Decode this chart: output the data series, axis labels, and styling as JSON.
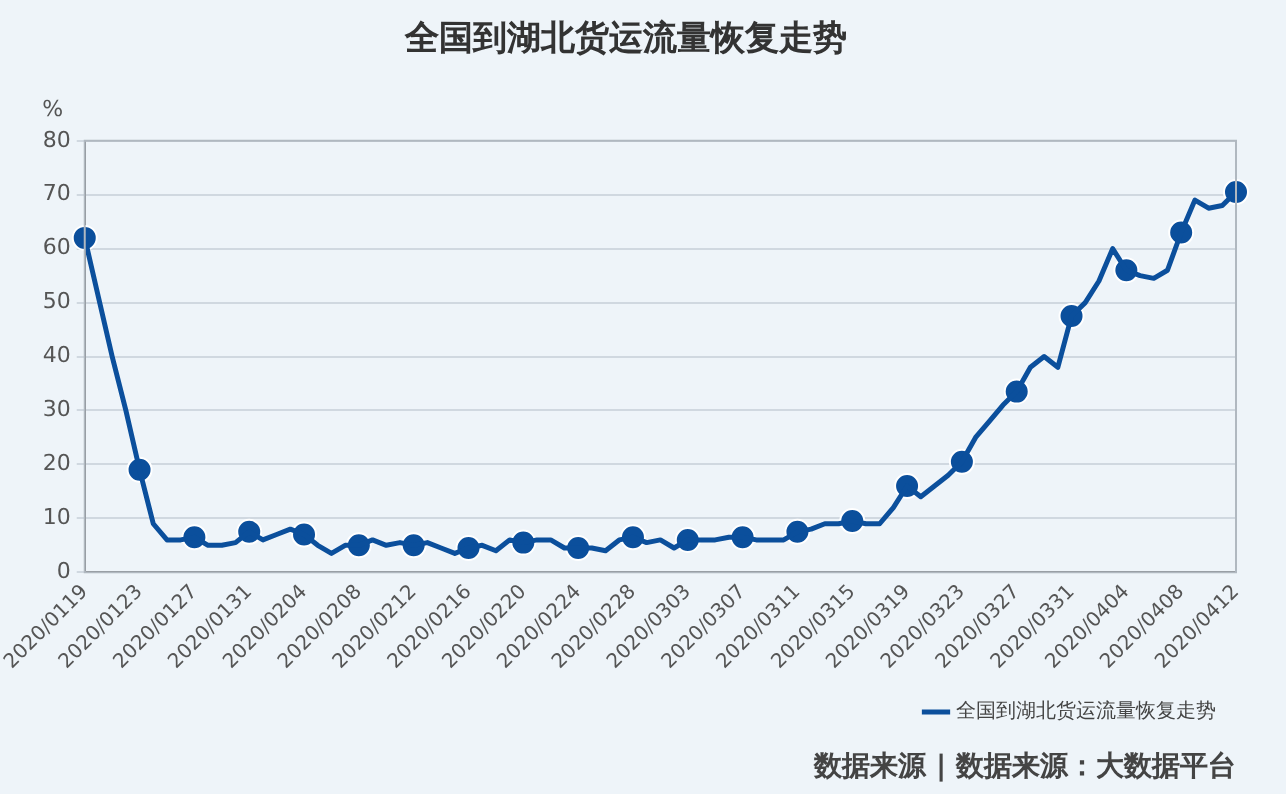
{
  "chart_data": {
    "type": "line",
    "title": "全国到湖北货运流量恢复走势",
    "ylabel": "%",
    "categories": [
      "2020/0119",
      null,
      null,
      null,
      "2020/0123",
      null,
      null,
      null,
      "2020/0127",
      null,
      null,
      null,
      "2020/0131",
      null,
      null,
      null,
      "2020/0204",
      null,
      null,
      null,
      "2020/0208",
      null,
      null,
      null,
      "2020/0212",
      null,
      null,
      null,
      "2020/0216",
      null,
      null,
      null,
      "2020/0220",
      null,
      null,
      null,
      "2020/0224",
      null,
      null,
      null,
      "2020/0228",
      null,
      null,
      null,
      "2020/0303",
      null,
      null,
      null,
      "2020/0307",
      null,
      null,
      null,
      "2020/0311",
      null,
      null,
      null,
      "2020/0315",
      null,
      null,
      null,
      "2020/0319",
      null,
      null,
      null,
      "2020/0323",
      null,
      null,
      null,
      "2020/0327",
      null,
      null,
      null,
      "2020/0331",
      null,
      null,
      null,
      "2020/0404",
      null,
      null,
      null,
      "2020/0408",
      null,
      null,
      null,
      "2020/0412"
    ],
    "series": [
      {
        "name": "全国到湖北货运流量恢复走势",
        "color": "#0b4f9c",
        "marker": "none",
        "values": [
          62,
          51,
          40,
          30,
          19,
          9,
          6,
          6,
          6.5,
          5,
          5,
          5.5,
          7.5,
          6,
          7,
          8,
          7,
          5,
          3.5,
          5,
          5,
          6,
          5,
          5.5,
          5,
          5.5,
          4.5,
          3.5,
          4.5,
          5,
          4,
          6,
          5.5,
          6,
          6,
          4.5,
          4.5,
          4.5,
          4,
          6,
          6.5,
          5.5,
          6,
          4.5,
          6,
          6,
          6,
          6.5,
          6.5,
          6,
          6,
          6,
          7.5,
          8,
          9,
          9,
          9.5,
          9,
          9,
          12,
          16,
          14,
          16,
          18,
          20.5,
          25,
          28,
          31,
          33.5,
          38,
          40,
          38,
          47.5,
          50,
          54,
          60,
          56,
          55,
          54.5,
          56,
          63,
          69,
          67.5,
          68,
          70.5
        ]
      },
      {
        "type": "scatter",
        "color": "#0b4f9c",
        "marker": "circle",
        "x": [
          "2020/0119",
          "2020/0123",
          "2020/0127",
          "2020/0131",
          "2020/0204",
          "2020/0208",
          "2020/0212",
          "2020/0216",
          "2020/0220",
          "2020/0224",
          "2020/0228",
          "2020/0303",
          "2020/0307",
          "2020/0311",
          "2020/0315",
          "2020/0319",
          "2020/0323",
          "2020/0327",
          "2020/0331",
          "2020/0404",
          "2020/0408",
          "2020/0412"
        ],
        "values": [
          62,
          19,
          6.5,
          7.5,
          7,
          5,
          5,
          4.5,
          5.5,
          4.5,
          6.5,
          6,
          6.5,
          7.5,
          9.5,
          16,
          20.5,
          33.5,
          47.5,
          56,
          63,
          70.5
        ]
      }
    ],
    "ylim": [
      0,
      80
    ],
    "yticks": [
      0,
      10,
      20,
      30,
      40,
      50,
      60,
      70,
      80
    ],
    "grid": "y",
    "legend": "bottom right",
    "line_style": "solid",
    "annotations": [
      "数据来源 | 数据来源：大数据平台"
    ]
  }
}
